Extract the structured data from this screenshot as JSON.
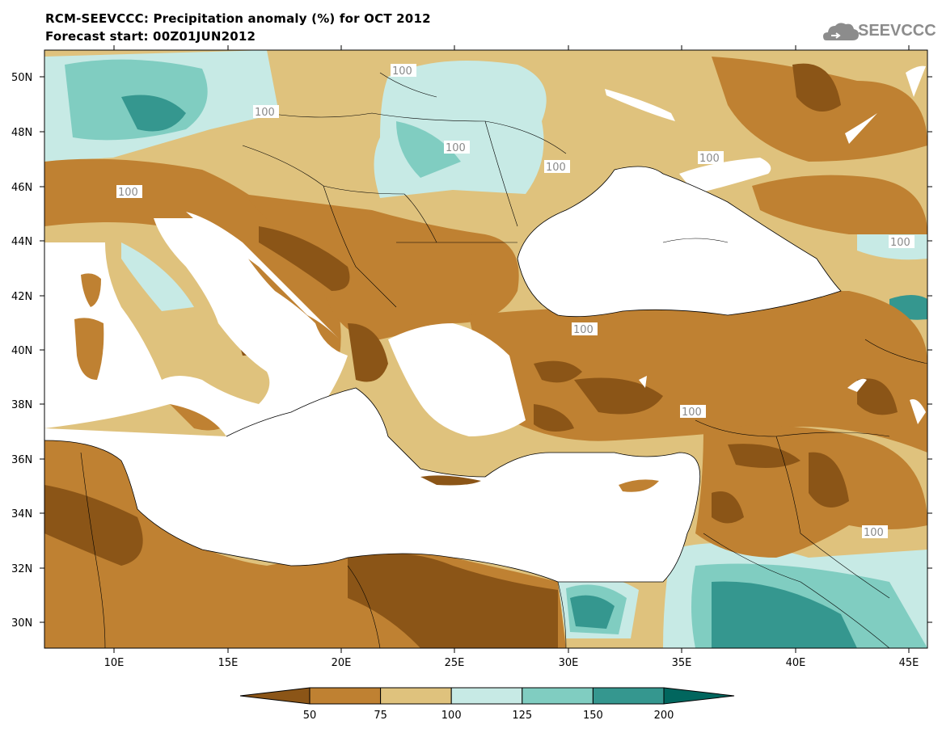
{
  "header": {
    "title_line1": "RCM-SEEVCCC: Precipitation anomaly (%) for OCT 2012",
    "title_line2": "Forecast start: 00Z01JUN2012"
  },
  "logo": {
    "text": "SEEVCCC",
    "icon": "cloud-logo-icon"
  },
  "map": {
    "lat_labels": [
      "50N",
      "48N",
      "46N",
      "44N",
      "42N",
      "40N",
      "38N",
      "36N",
      "34N",
      "32N",
      "30N"
    ],
    "lon_labels": [
      "10E",
      "15E",
      "20E",
      "25E",
      "30E",
      "35E",
      "40E",
      "45E"
    ],
    "contour_labels": [
      "100",
      "100",
      "100",
      "100",
      "100",
      "100",
      "100",
      "100",
      "100",
      "100"
    ]
  },
  "legend": {
    "tick_labels": [
      "50",
      "75",
      "100",
      "125",
      "150",
      "200"
    ],
    "colors": [
      "#8b5517",
      "#bf8132",
      "#dfc27d",
      "#c7eae5",
      "#80cdc1",
      "#35978f",
      "#01665e"
    ]
  }
}
